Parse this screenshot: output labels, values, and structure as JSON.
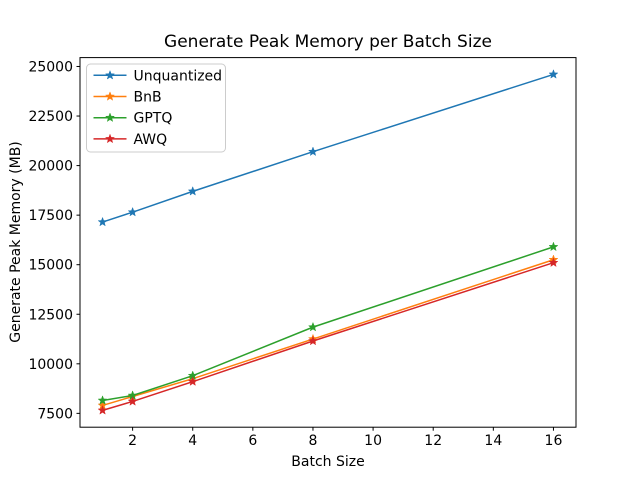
{
  "chart_data": {
    "type": "line",
    "title": "Generate Peak Memory per Batch Size",
    "xlabel": "Batch Size",
    "ylabel": "Generate Peak Memory (MB)",
    "x": [
      1,
      2,
      4,
      8,
      16
    ],
    "series": [
      {
        "name": "Unquantized",
        "color": "#1f77b4",
        "marker": "star",
        "values": [
          17150,
          17650,
          18700,
          20700,
          24600
        ]
      },
      {
        "name": "BnB",
        "color": "#ff7f0e",
        "marker": "star",
        "values": [
          7900,
          8350,
          9250,
          11250,
          15250
        ]
      },
      {
        "name": "GPTQ",
        "color": "#2ca02c",
        "marker": "star",
        "values": [
          8150,
          8400,
          9400,
          11850,
          15900
        ]
      },
      {
        "name": "AWQ",
        "color": "#d62728",
        "marker": "star",
        "values": [
          7650,
          8100,
          9100,
          11150,
          15100
        ]
      }
    ],
    "x_ticks": [
      2,
      4,
      6,
      8,
      10,
      12,
      14,
      16
    ],
    "y_ticks": [
      7500,
      10000,
      12500,
      15000,
      17500,
      20000,
      22500,
      25000
    ],
    "xlim": [
      0.25,
      16.75
    ],
    "ylim": [
      6802,
      25448
    ],
    "grid": false,
    "legend_position": "upper left",
    "line_width": 1.5,
    "axes_color": "#000000",
    "legend_border_color": "#cccccc",
    "background": "#ffffff"
  }
}
